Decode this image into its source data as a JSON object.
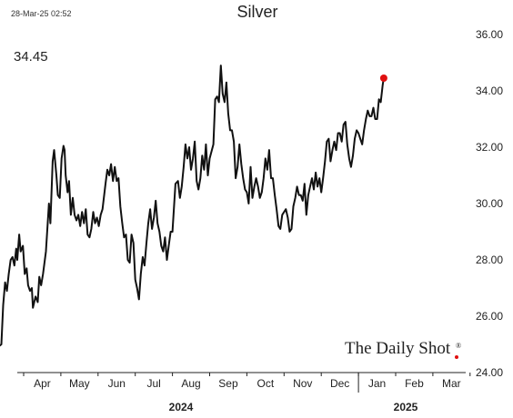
{
  "header": {
    "timestamp": "28-Mar-25 02:52",
    "title": "Silver",
    "last_value": "34.45"
  },
  "branding": {
    "name": "The Daily Shot",
    "reg_mark": "®",
    "dot_color": "#e01010"
  },
  "colors": {
    "line": "#111111",
    "marker": "#e01010"
  },
  "chart_data": {
    "type": "line",
    "title": "Silver",
    "x_unit": "month index (0 = start of Apr 2024)",
    "ylim": [
      24,
      36.5
    ],
    "y_ticks": [
      24,
      26,
      28,
      30,
      32,
      34,
      36
    ],
    "y_tick_labels": [
      "24.00",
      "26.00",
      "28.00",
      "30.00",
      "32.00",
      "34.00",
      "36.00"
    ],
    "x_month_labels": [
      "Apr",
      "May",
      "Jun",
      "Jul",
      "Aug",
      "Sep",
      "Oct",
      "Nov",
      "Dec",
      "Jan",
      "Feb",
      "Mar"
    ],
    "years": [
      "2024",
      "2025"
    ],
    "grid": false,
    "series": [
      {
        "values": [
          [
            -0.65,
            24.95
          ],
          [
            -0.6,
            25.0
          ],
          [
            -0.55,
            26.4
          ],
          [
            -0.5,
            27.2
          ],
          [
            -0.45,
            26.9
          ],
          [
            -0.4,
            27.5
          ],
          [
            -0.35,
            28.0
          ],
          [
            -0.3,
            28.1
          ],
          [
            -0.25,
            27.8
          ],
          [
            -0.2,
            28.4
          ],
          [
            -0.17,
            28.0
          ],
          [
            -0.12,
            28.9
          ],
          [
            -0.08,
            28.3
          ],
          [
            -0.02,
            28.5
          ],
          [
            0.03,
            27.5
          ],
          [
            0.08,
            27.7
          ],
          [
            0.12,
            27.1
          ],
          [
            0.17,
            26.9
          ],
          [
            0.22,
            27.0
          ],
          [
            0.25,
            26.3
          ],
          [
            0.32,
            26.7
          ],
          [
            0.38,
            26.5
          ],
          [
            0.42,
            27.4
          ],
          [
            0.47,
            27.1
          ],
          [
            0.52,
            27.5
          ],
          [
            0.6,
            28.3
          ],
          [
            0.68,
            30.0
          ],
          [
            0.72,
            29.3
          ],
          [
            0.78,
            31.5
          ],
          [
            0.82,
            31.9
          ],
          [
            0.88,
            31.0
          ],
          [
            0.92,
            30.3
          ],
          [
            0.97,
            30.2
          ],
          [
            1.02,
            31.6
          ],
          [
            1.07,
            32.05
          ],
          [
            1.1,
            31.9
          ],
          [
            1.13,
            31.0
          ],
          [
            1.18,
            30.4
          ],
          [
            1.22,
            30.8
          ],
          [
            1.27,
            29.6
          ],
          [
            1.32,
            30.2
          ],
          [
            1.37,
            29.6
          ],
          [
            1.42,
            29.4
          ],
          [
            1.47,
            29.6
          ],
          [
            1.52,
            29.2
          ],
          [
            1.57,
            29.7
          ],
          [
            1.62,
            29.3
          ],
          [
            1.67,
            29.8
          ],
          [
            1.72,
            28.9
          ],
          [
            1.77,
            28.8
          ],
          [
            1.82,
            29.1
          ],
          [
            1.87,
            29.7
          ],
          [
            1.92,
            29.3
          ],
          [
            1.97,
            29.5
          ],
          [
            2.02,
            29.2
          ],
          [
            2.07,
            29.6
          ],
          [
            2.12,
            29.8
          ],
          [
            2.2,
            30.7
          ],
          [
            2.25,
            31.2
          ],
          [
            2.3,
            31.0
          ],
          [
            2.35,
            31.4
          ],
          [
            2.4,
            30.8
          ],
          [
            2.45,
            31.3
          ],
          [
            2.5,
            30.8
          ],
          [
            2.55,
            30.9
          ],
          [
            2.6,
            29.9
          ],
          [
            2.65,
            29.3
          ],
          [
            2.7,
            28.8
          ],
          [
            2.75,
            28.9
          ],
          [
            2.8,
            28.0
          ],
          [
            2.85,
            27.9
          ],
          [
            2.9,
            28.9
          ],
          [
            2.95,
            28.6
          ],
          [
            3.0,
            27.3
          ],
          [
            3.05,
            27.0
          ],
          [
            3.1,
            26.6
          ],
          [
            3.15,
            27.5
          ],
          [
            3.2,
            28.1
          ],
          [
            3.25,
            27.8
          ],
          [
            3.3,
            28.6
          ],
          [
            3.35,
            29.3
          ],
          [
            3.4,
            29.8
          ],
          [
            3.45,
            29.1
          ],
          [
            3.5,
            29.5
          ],
          [
            3.55,
            30.1
          ],
          [
            3.6,
            29.3
          ],
          [
            3.65,
            29.0
          ],
          [
            3.7,
            28.5
          ],
          [
            3.75,
            28.3
          ],
          [
            3.8,
            28.8
          ],
          [
            3.85,
            28.0
          ],
          [
            3.9,
            28.5
          ],
          [
            3.95,
            29.0
          ],
          [
            4.0,
            29.0
          ],
          [
            4.08,
            30.7
          ],
          [
            4.15,
            30.8
          ],
          [
            4.2,
            30.2
          ],
          [
            4.25,
            30.6
          ],
          [
            4.3,
            31.3
          ],
          [
            4.35,
            32.1
          ],
          [
            4.4,
            31.6
          ],
          [
            4.45,
            32.0
          ],
          [
            4.5,
            31.2
          ],
          [
            4.55,
            31.6
          ],
          [
            4.6,
            32.2
          ],
          [
            4.65,
            30.8
          ],
          [
            4.7,
            30.5
          ],
          [
            4.75,
            30.9
          ],
          [
            4.8,
            31.7
          ],
          [
            4.85,
            31.2
          ],
          [
            4.9,
            32.1
          ],
          [
            4.95,
            31.0
          ],
          [
            5.0,
            31.6
          ],
          [
            5.1,
            32.1
          ],
          [
            5.15,
            33.7
          ],
          [
            5.2,
            33.8
          ],
          [
            5.25,
            33.6
          ],
          [
            5.3,
            34.9
          ],
          [
            5.35,
            33.9
          ],
          [
            5.4,
            33.6
          ],
          [
            5.45,
            34.3
          ],
          [
            5.5,
            33.2
          ],
          [
            5.55,
            32.6
          ],
          [
            5.6,
            32.6
          ],
          [
            5.65,
            32.2
          ],
          [
            5.7,
            30.9
          ],
          [
            5.75,
            31.3
          ],
          [
            5.8,
            32.1
          ],
          [
            5.85,
            31.4
          ],
          [
            5.9,
            30.9
          ],
          [
            5.95,
            30.5
          ],
          [
            6.0,
            30.4
          ],
          [
            6.05,
            30.0
          ],
          [
            6.1,
            31.3
          ],
          [
            6.15,
            30.2
          ],
          [
            6.2,
            30.6
          ],
          [
            6.25,
            30.9
          ],
          [
            6.3,
            30.6
          ],
          [
            6.35,
            30.2
          ],
          [
            6.4,
            30.4
          ],
          [
            6.45,
            30.9
          ],
          [
            6.5,
            31.6
          ],
          [
            6.55,
            31.2
          ],
          [
            6.6,
            31.9
          ],
          [
            6.65,
            30.9
          ],
          [
            6.7,
            30.9
          ],
          [
            6.75,
            30.3
          ],
          [
            6.8,
            29.8
          ],
          [
            6.85,
            29.2
          ],
          [
            6.9,
            29.1
          ],
          [
            6.95,
            29.6
          ],
          [
            7.0,
            29.7
          ],
          [
            7.05,
            29.8
          ],
          [
            7.1,
            29.5
          ],
          [
            7.15,
            29.0
          ],
          [
            7.2,
            29.1
          ],
          [
            7.25,
            29.9
          ],
          [
            7.3,
            30.2
          ],
          [
            7.35,
            30.6
          ],
          [
            7.4,
            30.3
          ],
          [
            7.45,
            30.3
          ],
          [
            7.5,
            30.1
          ],
          [
            7.55,
            30.7
          ],
          [
            7.6,
            29.6
          ],
          [
            7.65,
            30.3
          ],
          [
            7.7,
            30.6
          ],
          [
            7.75,
            30.9
          ],
          [
            7.8,
            30.5
          ],
          [
            7.85,
            31.1
          ],
          [
            7.9,
            30.6
          ],
          [
            7.95,
            30.9
          ],
          [
            8.0,
            30.4
          ],
          [
            8.05,
            30.9
          ],
          [
            8.1,
            31.5
          ],
          [
            8.15,
            32.2
          ],
          [
            8.2,
            32.3
          ],
          [
            8.25,
            31.5
          ],
          [
            8.3,
            31.9
          ],
          [
            8.35,
            32.2
          ],
          [
            8.4,
            31.9
          ],
          [
            8.45,
            32.5
          ],
          [
            8.5,
            32.5
          ],
          [
            8.55,
            32.2
          ],
          [
            8.6,
            32.8
          ],
          [
            8.65,
            32.9
          ],
          [
            8.7,
            32.1
          ],
          [
            8.75,
            31.6
          ],
          [
            8.8,
            31.3
          ],
          [
            8.85,
            31.7
          ],
          [
            8.9,
            32.3
          ],
          [
            8.95,
            32.6
          ],
          [
            9.0,
            32.5
          ],
          [
            9.05,
            32.3
          ],
          [
            9.1,
            32.1
          ],
          [
            9.15,
            32.6
          ],
          [
            9.2,
            33.0
          ],
          [
            9.25,
            33.3
          ],
          [
            9.3,
            33.1
          ],
          [
            9.35,
            33.1
          ],
          [
            9.4,
            33.4
          ],
          [
            9.45,
            33.0
          ],
          [
            9.5,
            33.0
          ],
          [
            9.55,
            33.7
          ],
          [
            9.6,
            33.6
          ],
          [
            9.65,
            34.2
          ],
          [
            9.68,
            34.45
          ]
        ]
      }
    ]
  }
}
